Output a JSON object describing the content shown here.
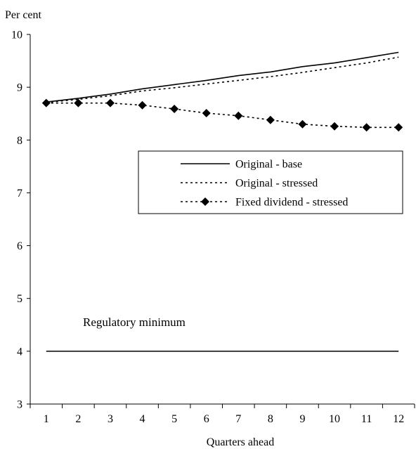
{
  "chart_data": {
    "type": "line",
    "title": "",
    "ylabel": "Per cent",
    "xlabel": "Quarters ahead",
    "x": [
      1,
      2,
      3,
      4,
      5,
      6,
      7,
      8,
      9,
      10,
      11,
      12
    ],
    "xlim": [
      0.5,
      12.5
    ],
    "ylim": [
      3,
      10
    ],
    "yticks": [
      3,
      4,
      5,
      6,
      7,
      8,
      9,
      10
    ],
    "grid": false,
    "legend_position": "center-right",
    "series": [
      {
        "name": "Original - base",
        "style": "solid",
        "values": [
          8.72,
          8.79,
          8.87,
          8.97,
          9.05,
          9.13,
          9.22,
          9.29,
          9.39,
          9.46,
          9.56,
          9.66
        ]
      },
      {
        "name": "Original - stressed",
        "style": "dotted",
        "values": [
          8.71,
          8.77,
          8.84,
          8.93,
          8.99,
          9.06,
          9.13,
          9.2,
          9.28,
          9.37,
          9.46,
          9.57
        ]
      },
      {
        "name": "Fixed dividend - stressed",
        "style": "dotted-diamond",
        "values": [
          8.7,
          8.7,
          8.7,
          8.66,
          8.59,
          8.51,
          8.46,
          8.38,
          8.3,
          8.26,
          8.24,
          8.24
        ]
      }
    ],
    "reference_line": {
      "label": "Regulatory minimum",
      "value": 4
    }
  }
}
